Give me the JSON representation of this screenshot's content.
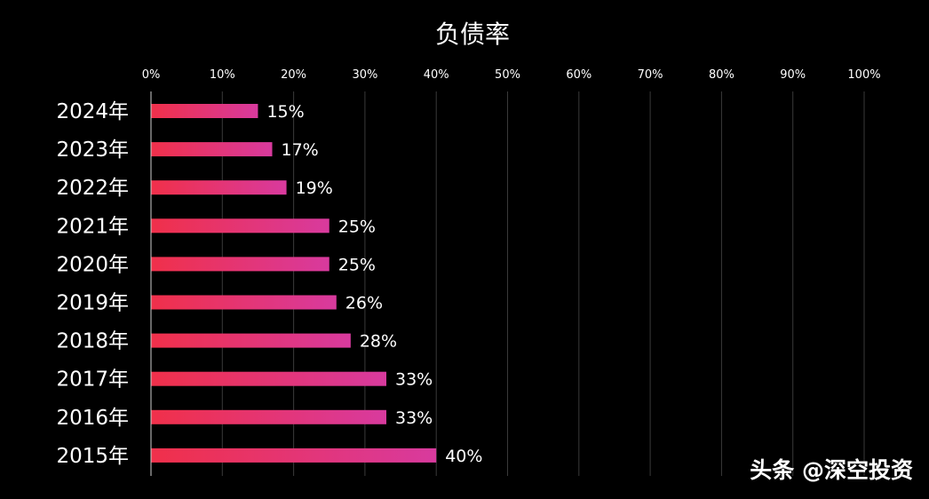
{
  "chart_data": {
    "type": "bar",
    "orientation": "horizontal",
    "title": "负债率",
    "categories": [
      "2024年",
      "2023年",
      "2022年",
      "2021年",
      "2020年",
      "2019年",
      "2018年",
      "2017年",
      "2016年",
      "2015年"
    ],
    "values": [
      15,
      17,
      19,
      25,
      25,
      26,
      28,
      33,
      33,
      40
    ],
    "data_labels": [
      "15%",
      "17%",
      "19%",
      "25%",
      "25%",
      "26%",
      "28%",
      "33%",
      "33%",
      "40%"
    ],
    "x_ticks": [
      "0%",
      "10%",
      "20%",
      "30%",
      "40%",
      "50%",
      "60%",
      "70%",
      "80%",
      "90%",
      "100%"
    ],
    "xlim": [
      0,
      100
    ],
    "x_axis_position": "top",
    "grid": true,
    "legend": "none",
    "colors": {
      "background": "#000000",
      "bar_gradient_start": "#f0304a",
      "bar_gradient_end": "#d83a9e",
      "grid": "#3a3a3a",
      "text": "#ffffff"
    }
  },
  "watermark": "头条 @深空投资"
}
